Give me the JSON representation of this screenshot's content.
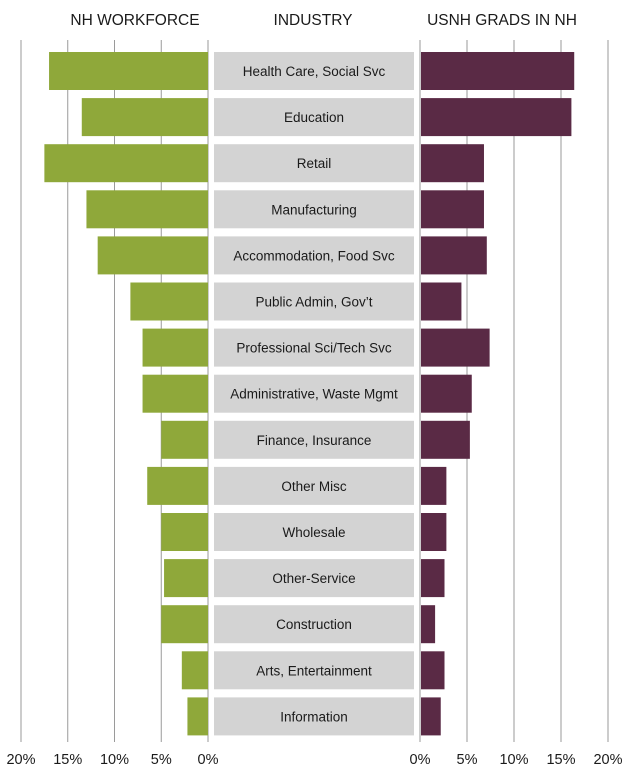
{
  "chart_data": {
    "type": "bar",
    "headers": {
      "left": "NH WORKFORCE",
      "center": "INDUSTRY",
      "right": "USNH GRADS IN NH"
    },
    "categories": [
      "Health Care, Social Svc",
      "Education",
      "Retail",
      "Manufacturing",
      "Accommodation, Food Svc",
      "Public Admin, Gov’t",
      "Professional Sci/Tech Svc",
      "Administrative, Waste Mgmt",
      "Finance, Insurance",
      "Other Misc",
      "Wholesale",
      "Other-Service",
      "Construction",
      "Arts, Entertainment",
      "Information"
    ],
    "series": [
      {
        "name": "NH WORKFORCE",
        "color": "#8fa83a",
        "values": [
          17.0,
          13.5,
          17.5,
          13.0,
          11.8,
          8.3,
          7.0,
          7.0,
          5.0,
          6.5,
          5.0,
          4.7,
          5.0,
          2.8,
          2.2
        ]
      },
      {
        "name": "USNH GRADS IN NH",
        "color": "#5a2a45",
        "values": [
          16.3,
          16.0,
          6.7,
          6.7,
          7.0,
          4.3,
          7.3,
          5.4,
          5.2,
          2.7,
          2.7,
          2.5,
          1.5,
          2.5,
          2.1
        ]
      }
    ],
    "xlim": [
      0,
      20
    ],
    "left_ticks": [
      "20%",
      "15%",
      "10%",
      "5%",
      "0%"
    ],
    "right_ticks": [
      "0%",
      "5%",
      "10%",
      "15%",
      "20%"
    ],
    "tick_values": [
      20,
      15,
      10,
      5,
      0
    ],
    "right_tick_values": [
      0,
      5,
      10,
      15,
      20
    ],
    "category_box_color": "#d3d3d3",
    "grid": true
  }
}
